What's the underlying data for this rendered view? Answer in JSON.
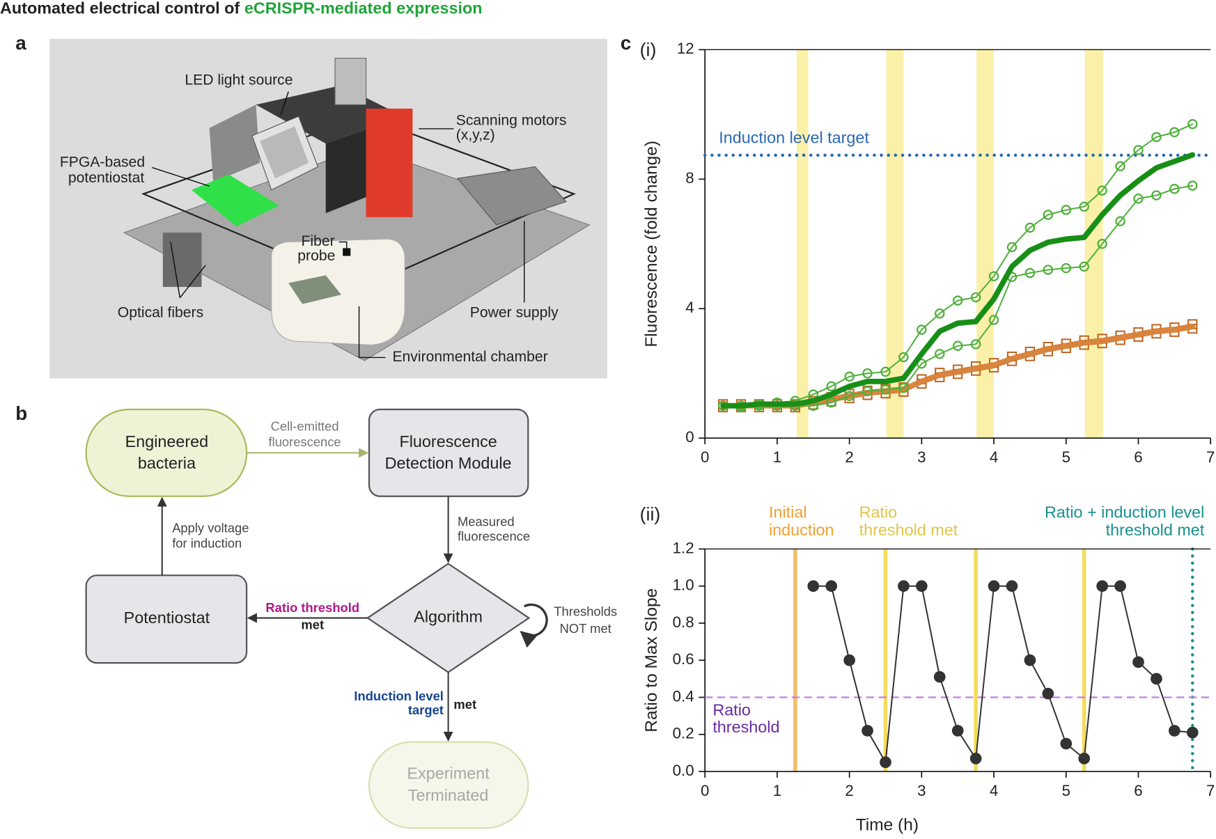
{
  "title": [
    "Automated electrical control of",
    "eCRISPR-mediated expression"
  ],
  "panel_letters": [
    "a",
    "b",
    "c"
  ],
  "panel_a": {
    "labels": {
      "led": [
        "LED light source"
      ],
      "fpga": [
        "FPGA-based",
        "potentiostat"
      ],
      "motors": [
        "Scanning motors",
        "(x,y,z)"
      ],
      "probe": [
        "Fiber",
        "probe"
      ],
      "fibers": [
        "Optical fibers"
      ],
      "power": [
        "Power supply"
      ],
      "chamber": [
        "Environmental chamber"
      ]
    }
  },
  "panel_b": {
    "nodes": [
      {
        "label": [
          "Engineered",
          "bacteria"
        ]
      },
      {
        "label": [
          "Fluorescence",
          "Detection Module"
        ]
      },
      {
        "label": [
          "Algorithm"
        ]
      },
      {
        "label": [
          "Potentiostat"
        ]
      },
      {
        "label": [
          "Experiment",
          "Terminated"
        ]
      }
    ],
    "edges": [
      {
        "label": [
          "Cell-emitted",
          "fluorescence"
        ]
      },
      {
        "label": [
          "Measured",
          "fluorescence"
        ]
      },
      {
        "label": [
          "Ratio threshold",
          "met"
        ]
      },
      {
        "label": [
          "Thresholds",
          "NOT met"
        ]
      },
      {
        "label": [
          "Apply voltage",
          "for induction"
        ]
      },
      {
        "label": [
          "Induction level",
          "target",
          "met"
        ]
      }
    ]
  },
  "chart_data": [
    {
      "type": "line",
      "panel_label": "(i)",
      "ylabel": "Fluorescence (fold change)",
      "xlim": [
        0,
        7
      ],
      "xticks": [
        0,
        1,
        2,
        3,
        4,
        5,
        6,
        7
      ],
      "ylim": [
        0,
        12
      ],
      "yticks": [
        0,
        4,
        8,
        12
      ],
      "band_color": "#faf0a8",
      "bands": [
        [
          1.27,
          1.43
        ],
        [
          2.51,
          2.75
        ],
        [
          3.76,
          4.0
        ],
        [
          5.26,
          5.51
        ]
      ],
      "hlines": [
        {
          "value": 8.74,
          "label": [
            "Induction level target"
          ],
          "color": "#2b67b1",
          "style": "dotted"
        }
      ],
      "x": [
        0.25,
        0.5,
        0.75,
        1.0,
        1.25,
        1.5,
        1.75,
        2.0,
        2.25,
        2.5,
        2.75,
        3.0,
        3.25,
        3.5,
        3.75,
        4.0,
        4.25,
        4.5,
        4.75,
        5.0,
        5.25,
        5.5,
        5.75,
        6.0,
        6.25,
        6.5,
        6.75
      ],
      "series": [
        {
          "color": "#c0621e",
          "marker": "square",
          "values": [
            1.05,
            1.05,
            1.05,
            1.05,
            1.05,
            1.15,
            1.27,
            1.37,
            1.47,
            1.52,
            1.57,
            1.82,
            2.02,
            2.12,
            2.22,
            2.32,
            2.52,
            2.67,
            2.82,
            2.92,
            3.02,
            3.07,
            3.17,
            3.27,
            3.37,
            3.42,
            3.52
          ]
        },
        {
          "color": "#c0621e",
          "marker": "square",
          "values": [
            0.95,
            0.95,
            0.95,
            0.95,
            0.95,
            1.03,
            1.13,
            1.23,
            1.33,
            1.38,
            1.43,
            1.68,
            1.88,
            1.98,
            2.08,
            2.18,
            2.38,
            2.53,
            2.68,
            2.78,
            2.88,
            2.93,
            3.03,
            3.13,
            3.23,
            3.28,
            3.38
          ]
        },
        {
          "color": "#d9843c",
          "marker": "none",
          "values": [
            1.0,
            1.0,
            1.0,
            1.0,
            1.0,
            1.09,
            1.2,
            1.3,
            1.4,
            1.45,
            1.5,
            1.75,
            1.95,
            2.05,
            2.15,
            2.25,
            2.45,
            2.6,
            2.75,
            2.85,
            2.95,
            3.0,
            3.1,
            3.2,
            3.3,
            3.35,
            3.45
          ]
        },
        {
          "color": "#4fb03b",
          "marker": "circle",
          "values": [
            1.0,
            1.0,
            1.05,
            1.1,
            1.15,
            1.35,
            1.6,
            1.9,
            2.0,
            2.05,
            2.5,
            3.35,
            3.85,
            4.25,
            4.35,
            5.0,
            5.9,
            6.5,
            6.9,
            7.05,
            7.15,
            7.65,
            8.4,
            8.9,
            9.3,
            9.45,
            9.7
          ]
        },
        {
          "color": "#4fb03b",
          "marker": "circle",
          "values": [
            1.0,
            0.95,
            1.0,
            1.0,
            1.0,
            1.0,
            1.1,
            1.3,
            1.45,
            1.5,
            1.55,
            2.3,
            2.6,
            2.85,
            2.9,
            3.65,
            4.98,
            5.1,
            5.2,
            5.25,
            5.3,
            6.0,
            6.7,
            7.4,
            7.5,
            7.7,
            7.8
          ]
        },
        {
          "color": "#178f17",
          "marker": "none",
          "values": [
            1.0,
            1.0,
            1.05,
            1.05,
            1.05,
            1.15,
            1.35,
            1.6,
            1.75,
            1.75,
            1.85,
            2.6,
            3.3,
            3.55,
            3.6,
            4.3,
            5.3,
            5.8,
            6.05,
            6.15,
            6.2,
            6.9,
            7.5,
            7.95,
            8.35,
            8.55,
            8.75
          ]
        }
      ]
    },
    {
      "type": "line",
      "panel_label": "(ii)",
      "ylabel": "Ratio to Max Slope",
      "xlabel": "Time (h)",
      "xlim": [
        0,
        7
      ],
      "xticks": [
        0,
        1,
        2,
        3,
        4,
        5,
        6,
        7
      ],
      "ylim": [
        0,
        1.2
      ],
      "yticks": [
        {
          "value": 0,
          "label": "0.0"
        },
        0.2,
        0.4,
        0.6,
        0.8,
        {
          "value": 1,
          "label": "1.0"
        },
        1.2
      ],
      "hlines": [
        {
          "value": 0.4,
          "label": [
            "Ratio",
            "threshold"
          ],
          "color": "#c37ce6",
          "label_color": "#6a2ba3",
          "style": "dashed"
        }
      ],
      "vlines": [
        {
          "value": 1.25,
          "color": "#f4bd68",
          "label_color": "#f0a030",
          "style": "solid",
          "label": [
            "Initial",
            "induction"
          ]
        },
        {
          "value": 2.5,
          "color": "#f3dc5c",
          "label_color": "#e2c54b",
          "style": "solid",
          "label": [
            "Ratio",
            "threshold met"
          ]
        },
        {
          "value": 3.75,
          "color": "#f3dc5c",
          "style": "solid"
        },
        {
          "value": 5.25,
          "color": "#f3dc5c",
          "style": "solid"
        },
        {
          "value": 6.75,
          "color": "#17908f",
          "label_color": "#17908f",
          "style": "dotted",
          "label": [
            "Ratio + induction level",
            "threshold met"
          ]
        }
      ],
      "x": [
        1.5,
        1.75,
        2.0,
        2.25,
        2.5,
        2.75,
        3.0,
        3.25,
        3.5,
        3.75,
        4.0,
        4.25,
        4.5,
        4.75,
        5.0,
        5.25,
        5.5,
        5.75,
        6.0,
        6.25,
        6.5,
        6.75
      ],
      "series": [
        {
          "color": "#333333",
          "marker": "filled-circle",
          "values": [
            1.0,
            1.0,
            0.6,
            0.22,
            0.05,
            1.0,
            1.0,
            0.51,
            0.22,
            0.07,
            1.0,
            1.0,
            0.6,
            0.42,
            0.15,
            0.07,
            1.0,
            1.0,
            0.59,
            0.5,
            0.22,
            0.21
          ]
        }
      ]
    }
  ]
}
